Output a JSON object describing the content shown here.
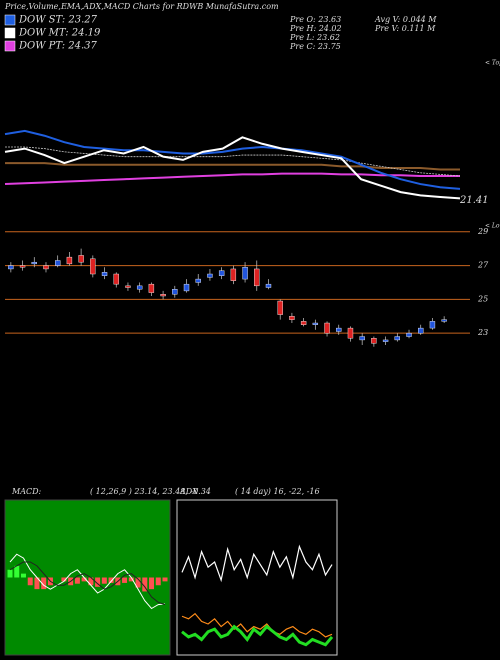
{
  "header": {
    "title": "Price,Volume,EMA,ADX,MACD Charts for RDWB MunafaSutra.com",
    "legend": [
      {
        "label": "DOW ST: 23.27",
        "color": "#1f5fe0"
      },
      {
        "label": "DOW MT: 24.19",
        "color": "#ffffff"
      },
      {
        "label": "DOW PT: 24.37",
        "color": "#e040e0"
      }
    ],
    "stats": [
      "Pre  O: 23.63",
      "Pre  H: 24.02",
      "Pre  L: 23.62",
      "Pre  C: 23.75",
      "Avg V: 0.044  M",
      "Pre  V: 0.111 M"
    ]
  },
  "chart_data": [
    {
      "type": "line",
      "annotation": "< Tops",
      "last_label": "21.41",
      "ylim": [
        21,
        30
      ],
      "series": [
        {
          "color": "#8b5a2b",
          "values": [
            23.6,
            23.6,
            23.6,
            23.5,
            23.5,
            23.5,
            23.5,
            23.5,
            23.5,
            23.5,
            23.5,
            23.5,
            23.5,
            23.5,
            23.5,
            23.5,
            23.5,
            23.4,
            23.4,
            23.3,
            23.3,
            23.3,
            23.2,
            23.2
          ]
        },
        {
          "color": "#e040e0",
          "values": [
            22.3,
            22.35,
            22.4,
            22.45,
            22.5,
            22.55,
            22.6,
            22.65,
            22.7,
            22.75,
            22.8,
            22.85,
            22.9,
            22.9,
            22.95,
            22.95,
            22.95,
            22.9,
            22.9,
            22.85,
            22.85,
            22.8,
            22.8,
            22.8
          ]
        },
        {
          "color": "#cccccc",
          "values": [
            24.6,
            24.6,
            24.5,
            24.3,
            24.2,
            24.1,
            24.0,
            24.0,
            24.0,
            24.0,
            24.0,
            24.0,
            24.1,
            24.1,
            24.1,
            24.0,
            23.9,
            23.8,
            23.6,
            23.4,
            23.2,
            23.0,
            22.9,
            22.8
          ]
        },
        {
          "color": "#1f5fe0",
          "values": [
            25.4,
            25.6,
            25.3,
            24.9,
            24.6,
            24.5,
            24.4,
            24.4,
            24.3,
            24.2,
            24.2,
            24.3,
            24.5,
            24.6,
            24.5,
            24.4,
            24.2,
            24.0,
            23.5,
            23.0,
            22.6,
            22.3,
            22.1,
            22.0
          ]
        },
        {
          "color": "#ffffff",
          "values": [
            24.3,
            24.5,
            24.1,
            23.6,
            24.0,
            24.4,
            24.2,
            24.6,
            24.0,
            23.8,
            24.3,
            24.5,
            25.2,
            24.8,
            24.5,
            24.3,
            24.1,
            23.9,
            22.6,
            22.2,
            21.8,
            21.6,
            21.5,
            21.41
          ]
        }
      ]
    },
    {
      "type": "candlestick",
      "annotation": "< Lows",
      "ylim": [
        22.3,
        29.4
      ],
      "yticks": [
        29,
        27,
        25,
        23
      ],
      "up_color": "#2255dd",
      "down_color": "#dd2222",
      "open": [
        26.8,
        27.0,
        27.1,
        27.0,
        27.0,
        27.5,
        27.6,
        27.4,
        26.4,
        26.5,
        25.8,
        25.6,
        25.9,
        25.3,
        25.3,
        25.5,
        26.0,
        26.3,
        26.4,
        26.8,
        26.2,
        26.8,
        25.7,
        24.9,
        24.0,
        23.7,
        23.5,
        23.6,
        23.1,
        23.3,
        22.6,
        22.7,
        22.5,
        22.6,
        22.8,
        23.0,
        23.3,
        23.7
      ],
      "high": [
        27.2,
        27.3,
        27.5,
        27.2,
        27.6,
        27.8,
        28.0,
        27.6,
        26.9,
        26.6,
        26.0,
        26.0,
        26.0,
        25.5,
        25.8,
        26.2,
        26.5,
        26.8,
        26.9,
        27.0,
        27.2,
        27.3,
        26.2,
        25.0,
        24.2,
        23.9,
        23.8,
        23.7,
        23.5,
        23.4,
        23.0,
        22.8,
        22.8,
        23.0,
        23.2,
        23.5,
        23.9,
        24.0
      ],
      "low": [
        26.6,
        26.7,
        26.9,
        26.6,
        26.9,
        27.0,
        27.0,
        26.3,
        26.2,
        25.7,
        25.5,
        25.4,
        25.2,
        25.0,
        25.1,
        25.4,
        25.8,
        26.1,
        26.2,
        25.9,
        26.0,
        25.5,
        25.6,
        23.8,
        23.6,
        23.4,
        23.2,
        22.8,
        22.9,
        22.5,
        22.3,
        22.2,
        22.3,
        22.5,
        22.7,
        22.9,
        23.2,
        23.6
      ],
      "close": [
        27.0,
        26.9,
        27.2,
        26.8,
        27.3,
        27.1,
        27.2,
        26.5,
        26.6,
        25.9,
        25.7,
        25.8,
        25.4,
        25.2,
        25.6,
        25.9,
        26.2,
        26.5,
        26.7,
        26.1,
        26.9,
        25.8,
        25.9,
        24.1,
        23.8,
        23.5,
        23.6,
        23.0,
        23.3,
        22.7,
        22.8,
        22.4,
        22.6,
        22.8,
        23.0,
        23.3,
        23.7,
        23.8
      ]
    },
    {
      "type": "macd",
      "title": "MACD:",
      "subtitle": "( 12,26,9 ) 23.14, 23.48, -0.34",
      "ylim": [
        -1,
        1
      ],
      "macd": [
        0.2,
        0.3,
        0.25,
        0.1,
        0,
        -0.1,
        -0.15,
        -0.1,
        -0.05,
        0.05,
        0.1,
        0,
        -0.1,
        -0.2,
        -0.15,
        -0.05,
        0.05,
        0.1,
        0,
        -0.15,
        -0.3,
        -0.4,
        -0.35,
        -0.34
      ],
      "signal": [
        0.1,
        0.15,
        0.2,
        0.2,
        0.15,
        0.05,
        -0.05,
        -0.1,
        -0.1,
        -0.05,
        0.02,
        0.05,
        0,
        -0.08,
        -0.15,
        -0.12,
        -0.05,
        0.03,
        0.05,
        -0.02,
        -0.12,
        -0.25,
        -0.32,
        -0.35
      ],
      "histogram": [
        0.1,
        0.15,
        0.05,
        -0.1,
        -0.15,
        -0.15,
        -0.1,
        0,
        -0.05,
        -0.1,
        -0.08,
        -0.05,
        -0.1,
        -0.12,
        -0.08,
        -0.07,
        -0.1,
        -0.07,
        -0.05,
        -0.13,
        -0.18,
        -0.15,
        -0.1,
        -0.05
      ]
    },
    {
      "type": "adx",
      "title": "ADX",
      "subtitle": "( 14 day) 16, -22, -16",
      "ylim": [
        0,
        60
      ],
      "series": [
        {
          "color": "#ffffff",
          "values": [
            32,
            38,
            30,
            40,
            34,
            36,
            29,
            41,
            33,
            37,
            30,
            39,
            35,
            31,
            40,
            34,
            38,
            30,
            42,
            36,
            33,
            39,
            31,
            35
          ]
        },
        {
          "color": "#ff8c1a",
          "values": [
            15,
            14,
            16,
            13,
            12,
            14,
            11,
            13,
            10,
            12,
            9,
            11,
            10,
            12,
            9,
            8,
            10,
            11,
            9,
            8,
            10,
            9,
            7,
            8
          ]
        },
        {
          "color": "#22dd22",
          "values": [
            9,
            7,
            8,
            6,
            9,
            10,
            7,
            8,
            11,
            9,
            6,
            10,
            8,
            11,
            9,
            7,
            6,
            8,
            5,
            4,
            6,
            5,
            4,
            7
          ]
        }
      ]
    }
  ]
}
